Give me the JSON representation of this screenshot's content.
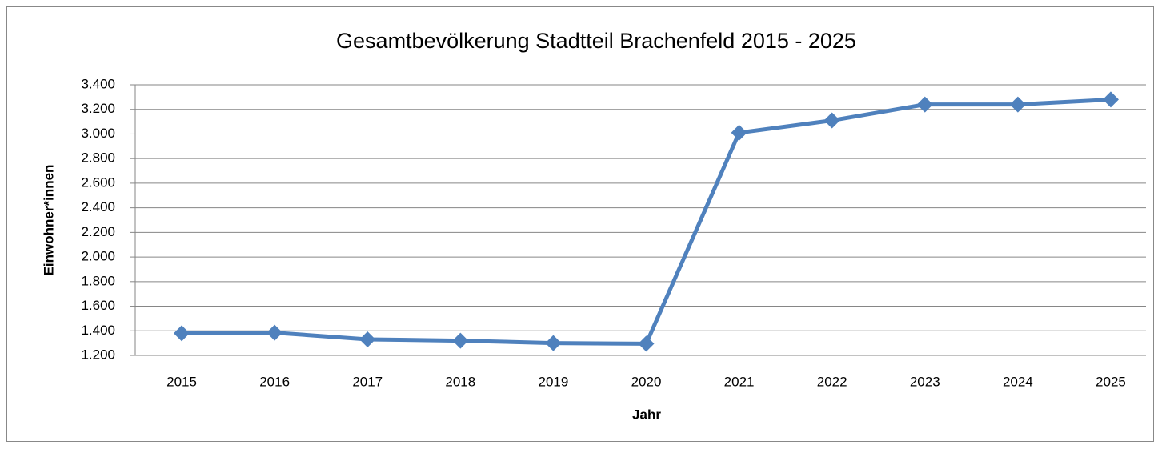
{
  "chart_data": {
    "type": "line",
    "title": "Gesamtbevölkerung Stadtteil Brachenfeld 2015 - 2025",
    "x_label": "Jahr",
    "y_label": "Einwohner*innen",
    "categories": [
      "2015",
      "2016",
      "2017",
      "2018",
      "2019",
      "2020",
      "2021",
      "2022",
      "2023",
      "2024",
      "2025"
    ],
    "series": [
      {
        "name": "Einwohner*innen",
        "color": "#4f81bd",
        "values": [
          1380,
          1385,
          1330,
          1320,
          1300,
          1295,
          3010,
          3110,
          3240,
          3240,
          3280
        ]
      }
    ],
    "ylim": [
      1200,
      3400
    ],
    "yticks": [
      {
        "value": 1200,
        "label": "1.200"
      },
      {
        "value": 1400,
        "label": "1.400"
      },
      {
        "value": 1600,
        "label": "1.600"
      },
      {
        "value": 1800,
        "label": "1.800"
      },
      {
        "value": 2000,
        "label": "2.000"
      },
      {
        "value": 2200,
        "label": "2.200"
      },
      {
        "value": 2400,
        "label": "2.400"
      },
      {
        "value": 2600,
        "label": "2.600"
      },
      {
        "value": 2800,
        "label": "2.800"
      },
      {
        "value": 3000,
        "label": "3.000"
      },
      {
        "value": 3200,
        "label": "3.200"
      },
      {
        "value": 3400,
        "label": "3.400"
      }
    ],
    "grid": true
  }
}
